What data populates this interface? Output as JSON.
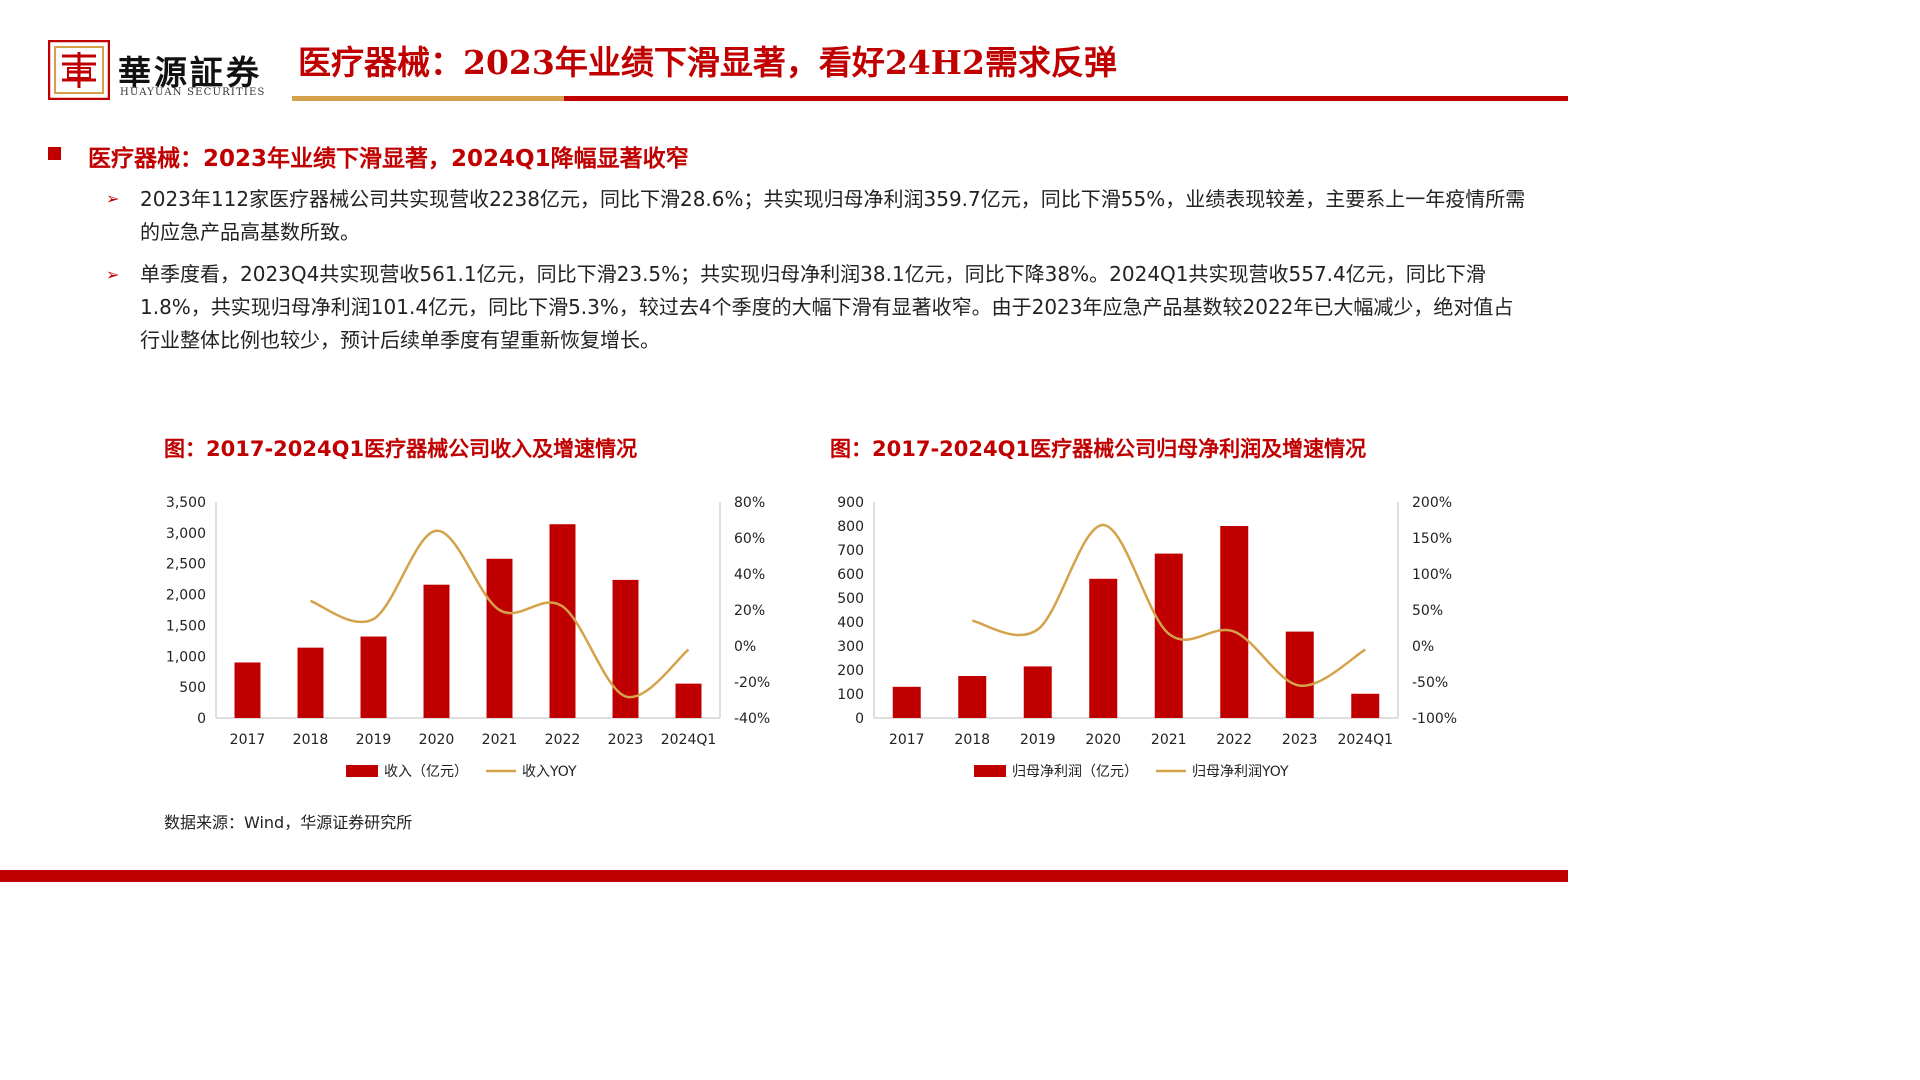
{
  "header": {
    "brand_cn": "華源証券",
    "brand_en": "HUAYUAN SECURITIES",
    "title": "医疗器械：2023年业绩下滑显著，看好24H2需求反弹",
    "colors": {
      "accent": "#c00000",
      "gold": "#d4a24a"
    }
  },
  "section": {
    "heading": "医疗器械：2023年业绩下滑显著，2024Q1降幅显著收窄",
    "bullets": [
      "2023年112家医疗器械公司共实现营收2238亿元，同比下滑28.6%；共实现归母净利润359.7亿元，同比下滑55%，业绩表现较差，主要系上一年疫情所需的应急产品高基数所致。",
      "单季度看，2023Q4共实现营收561.1亿元，同比下滑23.5%；共实现归母净利润38.1亿元，同比下降38%。2024Q1共实现营收557.4亿元，同比下滑1.8%，共实现归母净利润101.4亿元，同比下滑5.3%，较过去4个季度的大幅下滑有显著收窄。由于2023年应急产品基数较2022年已大幅减少，绝对值占行业整体比例也较少，预计后续单季度有望重新恢复增长。"
    ],
    "bullet_icon": "arrow-bullet-icon"
  },
  "chart_data": [
    {
      "type": "bar",
      "title": "图：2017-2024Q1医疗器械公司收入及增速情况",
      "categories": [
        "2017",
        "2018",
        "2019",
        "2020",
        "2021",
        "2022",
        "2023",
        "2024Q1"
      ],
      "series": [
        {
          "name": "收入（亿元）",
          "type": "bar",
          "axis": "left",
          "color": "#c00000",
          "values": [
            900,
            1140,
            1320,
            2160,
            2580,
            3140,
            2238,
            557
          ]
        },
        {
          "name": "收入YOY",
          "type": "line",
          "axis": "right",
          "color": "#d4a24a",
          "values": [
            null,
            25,
            15,
            64,
            20,
            22,
            -28,
            -2
          ]
        }
      ],
      "ylim": [
        0,
        3500
      ],
      "y_ticks": [
        "0",
        "500",
        "1,000",
        "1,500",
        "2,000",
        "2,500",
        "3,000",
        "3,500"
      ],
      "y2lim": [
        -40,
        80
      ],
      "y2_ticks": [
        "-40%",
        "-20%",
        "0%",
        "20%",
        "40%",
        "60%",
        "80%"
      ],
      "grid": false,
      "legend": "bottom"
    },
    {
      "type": "bar",
      "title": "图：2017-2024Q1医疗器械公司归母净利润及增速情况",
      "categories": [
        "2017",
        "2018",
        "2019",
        "2020",
        "2021",
        "2022",
        "2023",
        "2024Q1"
      ],
      "series": [
        {
          "name": "归母净利润（亿元）",
          "type": "bar",
          "axis": "left",
          "color": "#c00000",
          "values": [
            130,
            175,
            215,
            580,
            685,
            800,
            360,
            101
          ]
        },
        {
          "name": "归母净利润YOY",
          "type": "line",
          "axis": "right",
          "color": "#d4a24a",
          "values": [
            null,
            35,
            23,
            168,
            17,
            20,
            -55,
            -5
          ]
        }
      ],
      "ylim": [
        0,
        900
      ],
      "y_ticks": [
        "0",
        "100",
        "200",
        "300",
        "400",
        "500",
        "600",
        "700",
        "800",
        "900"
      ],
      "y2lim": [
        -100,
        200
      ],
      "y2_ticks": [
        "-100%",
        "-50%",
        "0%",
        "50%",
        "100%",
        "150%",
        "200%"
      ],
      "grid": false,
      "legend": "bottom"
    }
  ],
  "source": "数据来源：Wind，华源证券研究所"
}
